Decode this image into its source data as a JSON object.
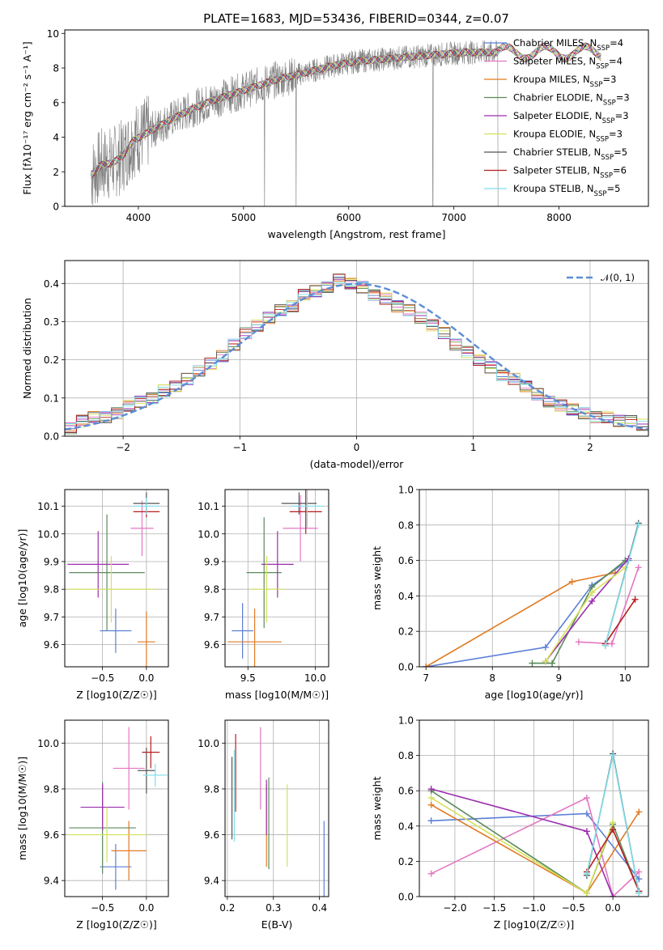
{
  "figure": {
    "title": "PLATE=1683, MJD=53436, FIBERID=0344, z=0.07",
    "colors": {
      "Chabrier MILES": "#5b7fd6",
      "Salpeter MILES": "#e377c2",
      "Kroupa MILES": "#e07b22",
      "Chabrier ELODIE": "#5c8a5c",
      "Salpeter ELODIE": "#9b2fae",
      "Kroupa ELODIE": "#d4e157",
      "Chabrier STELIB": "#555555",
      "Salpeter STELIB": "#b71c1c",
      "Kroupa STELIB": "#80deea",
      "data": "#808080",
      "normal": "#5b8ed6"
    }
  },
  "chart_data": [
    {
      "id": "spectrum",
      "type": "line",
      "xlabel": "wavelength [Angstrom, rest frame]",
      "ylabel": "Flux [fλ10⁻¹⁷ erg cm⁻² s⁻¹ A⁻¹]",
      "xlim": [
        3300,
        8850
      ],
      "ylim": [
        0,
        10.2
      ],
      "xticks": [
        4000,
        5000,
        6000,
        7000,
        8000
      ],
      "yticks": [
        0,
        2,
        4,
        6,
        8,
        10
      ],
      "grid": false,
      "legend": "top-right",
      "legend_entries": [
        {
          "series": "Chabrier MILES",
          "label": "Chabrier MILES, N",
          "sub": "SSP",
          "tail": "=4"
        },
        {
          "series": "Salpeter MILES",
          "label": "Salpeter MILES, N",
          "sub": "SSP",
          "tail": "=4"
        },
        {
          "series": "Kroupa MILES",
          "label": "Kroupa MILES, N",
          "sub": "SSP",
          "tail": "=3"
        },
        {
          "series": "Chabrier ELODIE",
          "label": "Chabrier ELODIE, N",
          "sub": "SSP",
          "tail": "=3"
        },
        {
          "series": "Salpeter ELODIE",
          "label": "Salpeter ELODIE, N",
          "sub": "SSP",
          "tail": "=3"
        },
        {
          "series": "Kroupa ELODIE",
          "label": "Kroupa ELODIE, N",
          "sub": "SSP",
          "tail": "=3"
        },
        {
          "series": "Chabrier STELIB",
          "label": "Chabrier STELIB, N",
          "sub": "SSP",
          "tail": "=5"
        },
        {
          "series": "Salpeter STELIB",
          "label": "Salpeter STELIB, N",
          "sub": "SSP",
          "tail": "=6"
        },
        {
          "series": "Kroupa STELIB",
          "label": "Kroupa STELIB, N",
          "sub": "SSP",
          "tail": "=5"
        }
      ],
      "model_curve": {
        "x": [
          3550,
          3650,
          3750,
          3850,
          3950,
          4100,
          4300,
          4500,
          4700,
          4900,
          5100,
          5300,
          5500,
          5700,
          5900,
          6100,
          6300,
          6500,
          6700,
          6900,
          7100,
          7300,
          7400
        ],
        "y": [
          1.8,
          2.4,
          2.5,
          2.9,
          3.8,
          4.3,
          5.0,
          5.6,
          6.1,
          6.5,
          6.9,
          7.3,
          7.6,
          7.9,
          8.2,
          8.4,
          8.5,
          8.6,
          8.7,
          8.8,
          8.9,
          8.9,
          8.9
        ]
      },
      "data_range": [
        3550,
        7420
      ],
      "models_only_range": [
        7420,
        8400
      ]
    },
    {
      "id": "residuals",
      "type": "histogram",
      "xlabel": "(data-model)/error",
      "ylabel": "Normed distribution",
      "xlim": [
        -2.5,
        2.5
      ],
      "ylim": [
        0,
        0.46
      ],
      "xticks": [
        -2,
        -1,
        0,
        1,
        2
      ],
      "yticks": [
        0.0,
        0.1,
        0.2,
        0.3,
        0.4
      ],
      "grid": true,
      "legend": "top-right",
      "legend_label": "𝒩(0, 1)",
      "bins": [
        -2.5,
        2.5,
        50
      ],
      "envelope": [
        0.02,
        0.04,
        0.05,
        0.05,
        0.06,
        0.08,
        0.09,
        0.1,
        0.12,
        0.13,
        0.15,
        0.17,
        0.19,
        0.21,
        0.24,
        0.27,
        0.29,
        0.31,
        0.33,
        0.34,
        0.37,
        0.38,
        0.39,
        0.41,
        0.4,
        0.39,
        0.37,
        0.36,
        0.34,
        0.33,
        0.31,
        0.29,
        0.27,
        0.24,
        0.22,
        0.2,
        0.18,
        0.16,
        0.15,
        0.13,
        0.11,
        0.09,
        0.08,
        0.07,
        0.06,
        0.05,
        0.05,
        0.04,
        0.04,
        0.03
      ]
    },
    {
      "id": "age-vs-Z",
      "type": "errorbar",
      "xlabel": "Z [log10(Z/Z☉)]",
      "ylabel": "age  [log10(age/yr)]",
      "xlim": [
        -0.93,
        0.25
      ],
      "ylim": [
        9.52,
        10.16
      ],
      "xticks": [
        -0.5,
        0.0
      ],
      "yticks": [
        9.6,
        9.7,
        9.8,
        9.9,
        10.0,
        10.1
      ],
      "grid": true,
      "points": [
        {
          "series": "Chabrier MILES",
          "x": -0.35,
          "y": 9.65,
          "xerr": 0.18,
          "yerr": 0.08
        },
        {
          "series": "Salpeter MILES",
          "x": -0.05,
          "y": 10.02,
          "xerr": 0.13,
          "yerr": 0.1
        },
        {
          "series": "Kroupa MILES",
          "x": 0.0,
          "y": 9.61,
          "xerr": 0.1,
          "yerr": 0.11
        },
        {
          "series": "Chabrier ELODIE",
          "x": -0.45,
          "y": 9.86,
          "xerr": 0.43,
          "yerr": 0.21
        },
        {
          "series": "Salpeter ELODIE",
          "x": -0.55,
          "y": 9.89,
          "xerr": 0.35,
          "yerr": 0.12
        },
        {
          "series": "Kroupa ELODIE",
          "x": -0.4,
          "y": 9.8,
          "xerr": 0.5,
          "yerr": 0.12
        },
        {
          "series": "Chabrier STELIB",
          "x": 0.0,
          "y": 10.11,
          "xerr": 0.15,
          "yerr": 0.04
        },
        {
          "series": "Salpeter STELIB",
          "x": 0.0,
          "y": 10.08,
          "xerr": 0.15,
          "yerr": 0.02
        },
        {
          "series": "Kroupa STELIB",
          "x": 0.0,
          "y": 10.1,
          "xerr": 0.15,
          "yerr": 0.03
        }
      ]
    },
    {
      "id": "age-vs-mass",
      "type": "errorbar",
      "xlabel": "mass [log10(M/M☉)]",
      "ylabel": "",
      "xlim": [
        9.33,
        10.1
      ],
      "ylim": [
        9.52,
        10.16
      ],
      "xticks": [
        9.5,
        10.0
      ],
      "yticks": [
        9.6,
        9.7,
        9.8,
        9.9,
        10.0,
        10.1
      ],
      "grid": true,
      "points": [
        {
          "series": "Chabrier MILES",
          "x": 9.46,
          "y": 9.65,
          "xerr": 0.08,
          "yerr": 0.1
        },
        {
          "series": "Salpeter MILES",
          "x": 9.89,
          "y": 10.02,
          "xerr": 0.13,
          "yerr": 0.12
        },
        {
          "series": "Kroupa MILES",
          "x": 9.55,
          "y": 9.61,
          "xerr": 0.2,
          "yerr": 0.12
        },
        {
          "series": "Chabrier ELODIE",
          "x": 9.62,
          "y": 9.86,
          "xerr": 0.13,
          "yerr": 0.2
        },
        {
          "series": "Salpeter ELODIE",
          "x": 9.72,
          "y": 9.89,
          "xerr": 0.12,
          "yerr": 0.12
        },
        {
          "series": "Kroupa ELODIE",
          "x": 9.64,
          "y": 9.8,
          "xerr": 0.13,
          "yerr": 0.12
        },
        {
          "series": "Chabrier STELIB",
          "x": 9.88,
          "y": 10.11,
          "xerr": 0.13,
          "yerr": 0.04
        },
        {
          "series": "Salpeter STELIB",
          "x": 9.93,
          "y": 10.08,
          "xerr": 0.12,
          "yerr": 0.08
        },
        {
          "series": "Kroupa STELIB",
          "x": 9.94,
          "y": 10.1,
          "xerr": 0.12,
          "yerr": 0.08
        }
      ]
    },
    {
      "id": "weight-vs-age",
      "type": "line",
      "xlabel": "age  [log10(age/yr)]",
      "ylabel": "mass weight",
      "xlim": [
        6.9,
        10.35
      ],
      "ylim": [
        0,
        1.0
      ],
      "xticks": [
        7,
        8,
        9,
        10
      ],
      "yticks": [
        0.0,
        0.2,
        0.4,
        0.6,
        0.8,
        1.0
      ],
      "grid": true,
      "series": [
        {
          "name": "Chabrier MILES",
          "x": [
            7.0,
            8.8,
            9.5,
            10.05
          ],
          "y": [
            0.0,
            0.11,
            0.46,
            0.6
          ]
        },
        {
          "name": "Salpeter MILES",
          "x": [
            9.3,
            9.8,
            10.2
          ],
          "y": [
            0.14,
            0.13,
            0.56
          ]
        },
        {
          "name": "Kroupa MILES",
          "x": [
            7.0,
            9.2,
            9.85
          ],
          "y": [
            0.0,
            0.48,
            0.53
          ]
        },
        {
          "name": "Chabrier ELODIE",
          "x": [
            8.6,
            8.9,
            9.5,
            10.0
          ],
          "y": [
            0.02,
            0.02,
            0.45,
            0.6
          ]
        },
        {
          "name": "Salpeter ELODIE",
          "x": [
            8.8,
            9.5,
            10.05
          ],
          "y": [
            0.03,
            0.37,
            0.61
          ]
        },
        {
          "name": "Kroupa ELODIE",
          "x": [
            8.8,
            9.5,
            10.0
          ],
          "y": [
            0.03,
            0.42,
            0.56
          ]
        },
        {
          "name": "Chabrier STELIB",
          "x": [
            9.7,
            10.2
          ],
          "y": [
            0.12,
            0.81
          ]
        },
        {
          "name": "Salpeter STELIB",
          "x": [
            9.7,
            10.15
          ],
          "y": [
            0.13,
            0.38
          ]
        },
        {
          "name": "Kroupa STELIB",
          "x": [
            9.7,
            10.2
          ],
          "y": [
            0.12,
            0.8
          ]
        }
      ]
    },
    {
      "id": "mass-vs-Z",
      "type": "errorbar",
      "xlabel": "Z [log10(Z/Z☉)]",
      "ylabel": "mass [log10(M/M☉)]",
      "xlim": [
        -0.93,
        0.25
      ],
      "ylim": [
        9.33,
        10.1
      ],
      "xticks": [
        -0.5,
        0.0
      ],
      "yticks": [
        9.4,
        9.6,
        9.8,
        10.0
      ],
      "grid": true,
      "points": [
        {
          "series": "Chabrier MILES",
          "x": -0.35,
          "y": 9.46,
          "xerr": 0.18,
          "yerr": 0.1
        },
        {
          "series": "Salpeter MILES",
          "x": -0.2,
          "y": 9.89,
          "xerr": 0.18,
          "yerr": 0.18
        },
        {
          "series": "Kroupa MILES",
          "x": -0.2,
          "y": 9.53,
          "xerr": 0.2,
          "yerr": 0.13
        },
        {
          "series": "Chabrier ELODIE",
          "x": -0.5,
          "y": 9.63,
          "xerr": 0.38,
          "yerr": 0.2
        },
        {
          "series": "Salpeter ELODIE",
          "x": -0.5,
          "y": 9.72,
          "xerr": 0.25,
          "yerr": 0.1
        },
        {
          "series": "Kroupa ELODIE",
          "x": -0.45,
          "y": 9.6,
          "xerr": 0.45,
          "yerr": 0.12
        },
        {
          "series": "Chabrier STELIB",
          "x": 0.0,
          "y": 9.88,
          "xerr": 0.1,
          "yerr": 0.1
        },
        {
          "series": "Salpeter STELIB",
          "x": 0.05,
          "y": 9.96,
          "xerr": 0.1,
          "yerr": 0.07
        },
        {
          "series": "Kroupa STELIB",
          "x": 0.1,
          "y": 9.86,
          "xerr": 0.14,
          "yerr": 0.05
        }
      ]
    },
    {
      "id": "mass-vs-EBV",
      "type": "errorbar",
      "xlabel": "E(B-V)",
      "ylabel": "",
      "xlim": [
        0.195,
        0.42
      ],
      "ylim": [
        9.33,
        10.1
      ],
      "xticks": [
        0.2,
        0.3,
        0.4
      ],
      "yticks": [
        9.4,
        9.6,
        9.8,
        10.0
      ],
      "grid": true,
      "points": [
        {
          "series": "Chabrier MILES",
          "x": 0.41,
          "y": 9.46,
          "xerr": 0.0,
          "yerr": 0.2
        },
        {
          "series": "Salpeter MILES",
          "x": 0.272,
          "y": 9.89,
          "xerr": 0.0,
          "yerr": 0.18
        },
        {
          "series": "Kroupa MILES",
          "x": 0.285,
          "y": 9.64,
          "xerr": 0.0,
          "yerr": 0.18
        },
        {
          "series": "Chabrier ELODIE",
          "x": 0.29,
          "y": 9.65,
          "xerr": 0.0,
          "yerr": 0.2
        },
        {
          "series": "Salpeter ELODIE",
          "x": 0.285,
          "y": 9.72,
          "xerr": 0.0,
          "yerr": 0.12
        },
        {
          "series": "Kroupa ELODIE",
          "x": 0.33,
          "y": 9.64,
          "xerr": 0.0,
          "yerr": 0.18
        },
        {
          "series": "Chabrier STELIB",
          "x": 0.21,
          "y": 9.76,
          "xerr": 0.0,
          "yerr": 0.18
        },
        {
          "series": "Salpeter STELIB",
          "x": 0.218,
          "y": 9.87,
          "xerr": 0.0,
          "yerr": 0.17
        },
        {
          "series": "Kroupa STELIB",
          "x": 0.215,
          "y": 9.77,
          "xerr": 0.0,
          "yerr": 0.2
        }
      ]
    },
    {
      "id": "weight-vs-Z",
      "type": "line",
      "xlabel": "Z [log10(Z/Z☉)]",
      "ylabel": "mass weight",
      "xlim": [
        -2.45,
        0.45
      ],
      "ylim": [
        0,
        1.0
      ],
      "xticks": [
        -2.0,
        -1.5,
        -1.0,
        -0.5,
        0.0
      ],
      "yticks": [
        0.0,
        0.2,
        0.4,
        0.6,
        0.8,
        1.0
      ],
      "grid": true,
      "series": [
        {
          "name": "Chabrier MILES",
          "x": [
            -2.3,
            -0.33,
            0.33
          ],
          "y": [
            0.43,
            0.47,
            0.1
          ]
        },
        {
          "name": "Salpeter MILES",
          "x": [
            -2.3,
            -0.33,
            0.0,
            0.33
          ],
          "y": [
            0.13,
            0.56,
            0.0,
            0.14
          ]
        },
        {
          "name": "Kroupa MILES",
          "x": [
            -2.3,
            -0.33,
            0.33
          ],
          "y": [
            0.52,
            0.02,
            0.48
          ]
        },
        {
          "name": "Chabrier ELODIE",
          "x": [
            -2.3,
            -0.33,
            0.0,
            0.33
          ],
          "y": [
            0.6,
            0.02,
            0.41,
            0.03
          ]
        },
        {
          "name": "Salpeter ELODIE",
          "x": [
            -2.3,
            -0.33,
            0.0
          ],
          "y": [
            0.61,
            0.37,
            0.0
          ]
        },
        {
          "name": "Kroupa ELODIE",
          "x": [
            -2.3,
            -0.33,
            0.0
          ],
          "y": [
            0.56,
            0.02,
            0.42
          ]
        },
        {
          "name": "Chabrier STELIB",
          "x": [
            -0.33,
            0.0,
            0.33
          ],
          "y": [
            0.12,
            0.81,
            0.02
          ]
        },
        {
          "name": "Salpeter STELIB",
          "x": [
            -0.33,
            0.0,
            0.33
          ],
          "y": [
            0.14,
            0.38,
            0.03
          ]
        },
        {
          "name": "Kroupa STELIB",
          "x": [
            -0.33,
            0.0,
            0.33
          ],
          "y": [
            0.13,
            0.8,
            0.02
          ]
        }
      ]
    }
  ]
}
